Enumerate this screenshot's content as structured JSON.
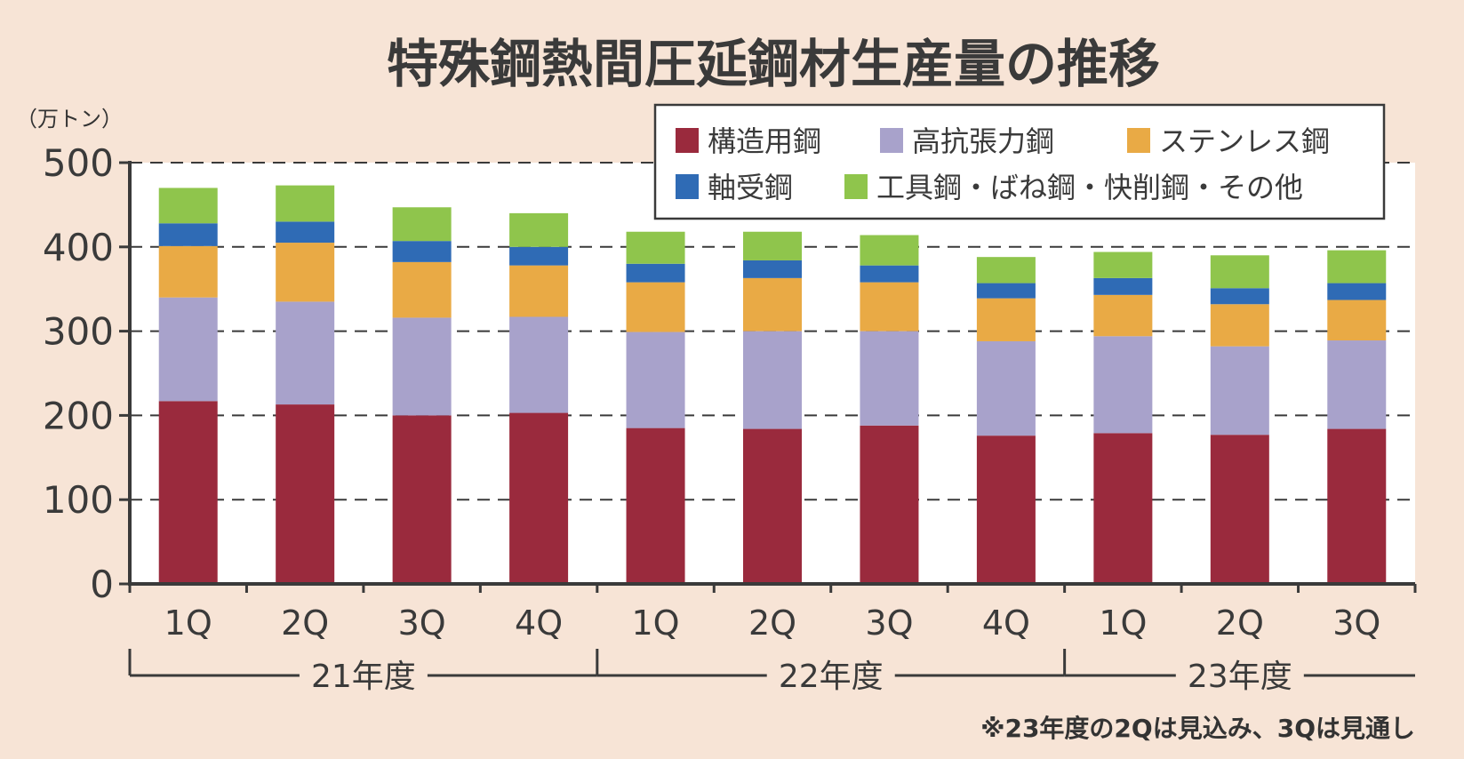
{
  "chart_data": {
    "type": "bar",
    "stacked": true,
    "title": "特殊鋼熱間圧延鋼材生産量の推移",
    "unit_label": "（万トン）",
    "ylim": [
      0,
      500
    ],
    "yticks": [
      0,
      100,
      200,
      300,
      400,
      500
    ],
    "categories": [
      "1Q",
      "2Q",
      "3Q",
      "4Q",
      "1Q",
      "2Q",
      "3Q",
      "4Q",
      "1Q",
      "2Q",
      "3Q"
    ],
    "groups": [
      {
        "label": "21年度",
        "count": 4
      },
      {
        "label": "22年度",
        "count": 4
      },
      {
        "label": "23年度",
        "count": 3
      }
    ],
    "series": [
      {
        "name": "構造用鋼",
        "color": "#9a2a3d",
        "values": [
          217,
          213,
          200,
          203,
          185,
          184,
          188,
          176,
          179,
          177,
          184
        ]
      },
      {
        "name": "高抗張力鋼",
        "color": "#a8a2cb",
        "values": [
          123,
          122,
          116,
          114,
          114,
          116,
          112,
          112,
          115,
          105,
          105
        ]
      },
      {
        "name": "ステンレス鋼",
        "color": "#e9aa45",
        "values": [
          61,
          70,
          66,
          61,
          59,
          63,
          58,
          51,
          49,
          50,
          48
        ]
      },
      {
        "name": "軸受鋼",
        "color": "#2f6bb5",
        "values": [
          27,
          25,
          25,
          22,
          22,
          21,
          20,
          18,
          20,
          19,
          20
        ]
      },
      {
        "name": "工具鋼・ばね鋼・快削鋼・その他",
        "color": "#8fc54c",
        "values": [
          42,
          43,
          40,
          40,
          38,
          34,
          36,
          31,
          31,
          39,
          39
        ]
      }
    ],
    "grid": true,
    "legend_position": "top-right"
  },
  "footnote": "※23年度の2Qは見込み、3Qは見通し"
}
